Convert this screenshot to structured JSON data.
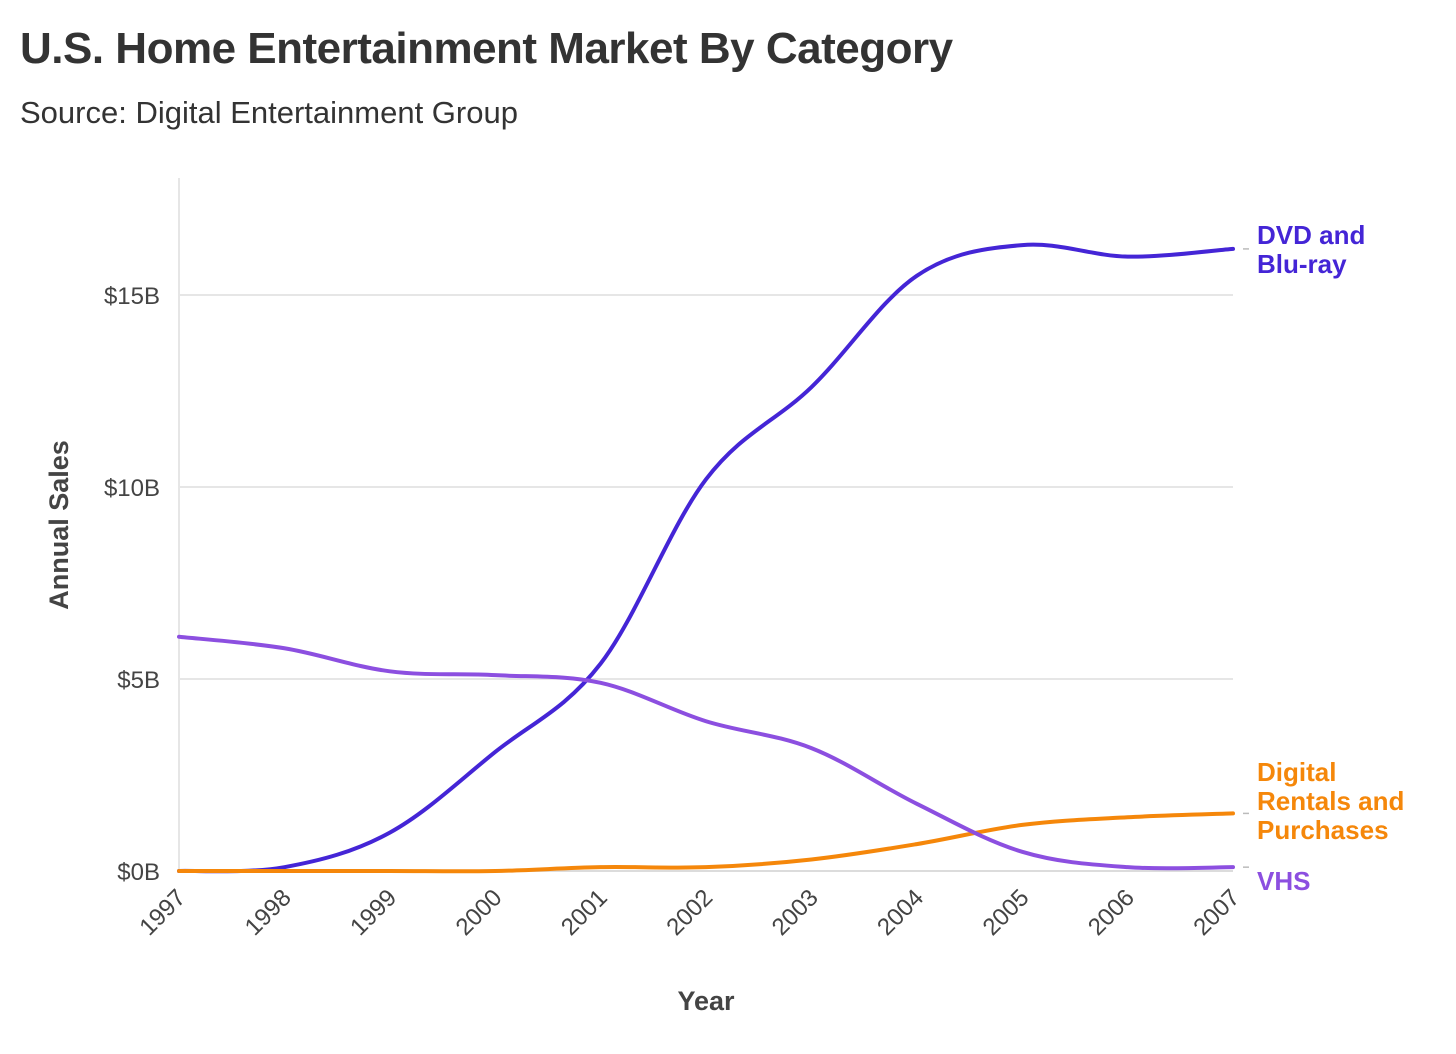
{
  "chart_data": {
    "type": "line",
    "title": "U.S. Home Entertainment Market By Category",
    "subtitle": "Source: Digital Entertainment Group",
    "xlabel": "Year",
    "ylabel": "Annual Sales",
    "x": [
      1997,
      1998,
      1999,
      2000,
      2001,
      2002,
      2003,
      2004,
      2005,
      2006,
      2007
    ],
    "x_tick_labels": [
      "1997",
      "1998",
      "1999",
      "2000",
      "2001",
      "2002",
      "2003",
      "2004",
      "2005",
      "2006",
      "2007"
    ],
    "y_ticks": [
      0,
      5,
      10,
      15
    ],
    "y_tick_labels": [
      "$0B",
      "$5B",
      "$10B",
      "$15B"
    ],
    "ylim": [
      0,
      18
    ],
    "grid": true,
    "legend": "direct labels at right",
    "series": [
      {
        "name": "DVD and Blu-ray",
        "label_lines": [
          "DVD and",
          "Blu-ray"
        ],
        "color": "#4425d6",
        "values": [
          0,
          0.1,
          1.0,
          3.1,
          5.4,
          10.2,
          12.6,
          15.5,
          16.3,
          16.0,
          16.2
        ]
      },
      {
        "name": "Digital Rentals and Purchases",
        "label_lines": [
          "Digital",
          "Rentals and",
          "Purchases"
        ],
        "color": "#f5870a",
        "values": [
          0,
          0,
          0,
          0,
          0.1,
          0.1,
          0.3,
          0.7,
          1.2,
          1.4,
          1.5
        ]
      },
      {
        "name": "VHS",
        "label_lines": [
          "VHS"
        ],
        "color": "#8c4fe0",
        "values": [
          6.1,
          5.8,
          5.2,
          5.1,
          4.9,
          3.9,
          3.2,
          1.75,
          0.5,
          0.1,
          0.1
        ]
      }
    ]
  }
}
